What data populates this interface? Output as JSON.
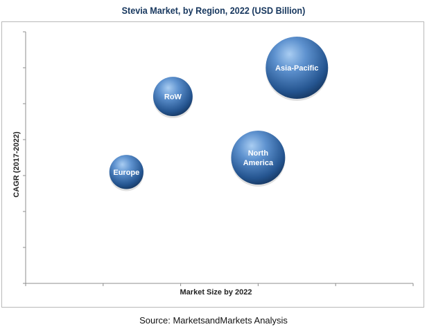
{
  "chart_data": {
    "type": "bubble",
    "title": "Stevia Market, by Region, 2022 (USD Billion)",
    "xlabel": "Market Size by 2022",
    "ylabel": "CAGR (2017-2022)",
    "xlim": [
      0,
      5
    ],
    "ylim": [
      0,
      7
    ],
    "x_ticks": 5,
    "y_ticks": 7,
    "grid": false,
    "bubble_color": "#2e5f9a",
    "bubbles": [
      {
        "label": "Asia-Pacific",
        "x": 3.5,
        "y": 6.0,
        "size": 1.0
      },
      {
        "label": "RoW",
        "x": 1.9,
        "y": 5.2,
        "size": 0.4
      },
      {
        "label": "North America",
        "x": 3.0,
        "y": 3.5,
        "size": 0.75
      },
      {
        "label": "Europe",
        "x": 1.3,
        "y": 3.1,
        "size": 0.3
      }
    ]
  },
  "source": "Source: MarketsandMarkets Analysis"
}
